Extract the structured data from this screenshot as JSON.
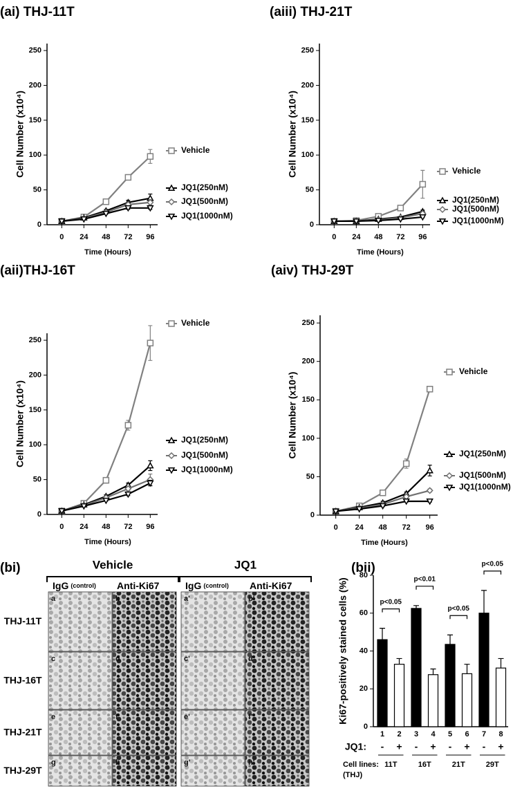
{
  "chart_data": [
    {
      "type": "line",
      "title": "(ai) THJ-11T",
      "x_label": "Time (Hours)",
      "y_label": "Cell Number (x10⁴)",
      "x": [
        0,
        24,
        48,
        72,
        96
      ],
      "xlim": [
        -16,
        104
      ],
      "xticks": [
        0,
        24,
        48,
        72,
        96
      ],
      "ylim": [
        0,
        260
      ],
      "yticks": [
        0,
        50,
        100,
        150,
        200,
        250
      ],
      "series": [
        {
          "name": "Vehicle",
          "color": "#808080",
          "marker": "square",
          "values": [
            5,
            11,
            33,
            68,
            98
          ],
          "errors": [
            1,
            1,
            4,
            3,
            10
          ]
        },
        {
          "name": "JQ1(250nM)",
          "color": "#000000",
          "marker": "triangle",
          "values": [
            5,
            10,
            20,
            32,
            38
          ],
          "errors": [
            1,
            1,
            2,
            3,
            6
          ]
        },
        {
          "name": "JQ1(500nM)",
          "color": "#707070",
          "marker": "diamond",
          "values": [
            5,
            9,
            18,
            29,
            32
          ],
          "errors": [
            1,
            1,
            2,
            2,
            4
          ]
        },
        {
          "name": "JQ1(1000nM)",
          "color": "#000000",
          "marker": "triangle-down",
          "values": [
            5,
            8,
            16,
            24,
            24
          ],
          "errors": [
            1,
            1,
            1,
            2,
            2
          ]
        }
      ]
    },
    {
      "type": "line",
      "title": "(aiii) THJ-21T",
      "x_label": "Time (Hours)",
      "y_label": "Cell Number (x10⁴)",
      "x": [
        0,
        24,
        48,
        72,
        96
      ],
      "xlim": [
        -16,
        104
      ],
      "xticks": [
        0,
        24,
        48,
        72,
        96
      ],
      "ylim": [
        0,
        260
      ],
      "yticks": [
        0,
        50,
        100,
        150,
        200,
        250
      ],
      "series": [
        {
          "name": "Vehicle",
          "color": "#808080",
          "marker": "square",
          "values": [
            5,
            6,
            12,
            24,
            58
          ],
          "errors": [
            1,
            1,
            2,
            3,
            20
          ]
        },
        {
          "name": "JQ1(250nM)",
          "color": "#000000",
          "marker": "triangle",
          "values": [
            5,
            5,
            8,
            11,
            19
          ],
          "errors": [
            1,
            1,
            1,
            1,
            2
          ]
        },
        {
          "name": "JQ1(500nM)",
          "color": "#707070",
          "marker": "diamond",
          "values": [
            5,
            5,
            7,
            10,
            16
          ],
          "errors": [
            1,
            1,
            1,
            1,
            2
          ]
        },
        {
          "name": "JQ1(1000nM)",
          "color": "#000000",
          "marker": "triangle-down",
          "values": [
            5,
            5,
            6,
            8,
            11
          ],
          "errors": [
            1,
            1,
            1,
            1,
            1
          ]
        }
      ]
    },
    {
      "type": "line",
      "title": "(aii)THJ-16T",
      "x_label": "Time (Hours)",
      "y_label": "Cell Number (x10⁴)",
      "x": [
        0,
        24,
        48,
        72,
        96
      ],
      "xlim": [
        -16,
        104
      ],
      "xticks": [
        0,
        24,
        48,
        72,
        96
      ],
      "ylim": [
        0,
        260
      ],
      "yticks": [
        0,
        50,
        100,
        150,
        200,
        250
      ],
      "series": [
        {
          "name": "Vehicle",
          "color": "#808080",
          "marker": "square",
          "values": [
            5,
            16,
            49,
            128,
            246
          ],
          "errors": [
            1,
            2,
            4,
            7,
            25
          ]
        },
        {
          "name": "JQ1(250nM)",
          "color": "#000000",
          "marker": "triangle",
          "values": [
            5,
            14,
            26,
            42,
            70
          ],
          "errors": [
            1,
            1,
            2,
            3,
            7
          ]
        },
        {
          "name": "JQ1(500nM)",
          "color": "#707070",
          "marker": "diamond",
          "values": [
            5,
            13,
            24,
            37,
            50
          ],
          "errors": [
            1,
            1,
            2,
            3,
            8
          ]
        },
        {
          "name": "JQ1(1000nM)",
          "color": "#000000",
          "marker": "triangle-down",
          "values": [
            5,
            12,
            20,
            29,
            45
          ],
          "errors": [
            1,
            1,
            1,
            2,
            4
          ]
        }
      ]
    },
    {
      "type": "line",
      "title": "(aiv) THJ-29T",
      "x_label": "Time (Hours)",
      "y_label": "Cell Number (x10⁴)",
      "x": [
        0,
        24,
        48,
        72,
        96
      ],
      "xlim": [
        -16,
        104
      ],
      "xticks": [
        0,
        24,
        48,
        72,
        96
      ],
      "ylim": [
        0,
        260
      ],
      "yticks": [
        0,
        50,
        100,
        150,
        200,
        250
      ],
      "series": [
        {
          "name": "Vehicle",
          "color": "#808080",
          "marker": "square",
          "values": [
            5,
            12,
            29,
            67,
            164
          ],
          "errors": [
            1,
            1,
            2,
            6,
            3
          ]
        },
        {
          "name": "JQ1(250nM)",
          "color": "#000000",
          "marker": "triangle",
          "values": [
            5,
            10,
            16,
            28,
            58
          ],
          "errors": [
            1,
            1,
            2,
            2,
            7
          ]
        },
        {
          "name": "JQ1(500nM)",
          "color": "#707070",
          "marker": "diamond",
          "values": [
            5,
            9,
            14,
            24,
            32
          ],
          "errors": [
            1,
            1,
            1,
            2,
            2
          ]
        },
        {
          "name": "JQ1(1000nM)",
          "color": "#000000",
          "marker": "triangle-down",
          "values": [
            5,
            8,
            12,
            18,
            18
          ],
          "errors": [
            1,
            1,
            1,
            1,
            1
          ]
        }
      ]
    },
    {
      "type": "bar",
      "title": "(bii)",
      "y_label": "Ki67-positively stained cells (%)",
      "categories": [
        "1",
        "2",
        "3",
        "4",
        "5",
        "6",
        "7",
        "8"
      ],
      "values": [
        46,
        33,
        62.5,
        27.5,
        43.5,
        28,
        60,
        31
      ],
      "errors": [
        6,
        3,
        1.5,
        3,
        5,
        5,
        12,
        5
      ],
      "colors": [
        "#000000",
        "#ffffff",
        "#000000",
        "#ffffff",
        "#000000",
        "#ffffff",
        "#000000",
        "#ffffff"
      ],
      "ylim": [
        0,
        80
      ],
      "yticks": [
        0,
        20,
        40,
        60,
        80
      ],
      "annotations": [
        "p<0.05",
        "p<0.01",
        "p<0.05",
        "p<0.05"
      ],
      "jq1_label": "JQ1:",
      "jq1_signs": [
        "-",
        "+",
        "-",
        "+",
        "-",
        "+",
        "-",
        "+"
      ],
      "cell_lines_label": "Cell lines:",
      "cell_lines_note": "(THJ)",
      "cell_lines": [
        "11T",
        "16T",
        "21T",
        "29T"
      ]
    }
  ],
  "image_panel": {
    "title": "(bi)",
    "columns": [
      {
        "label": "IgG",
        "note": "(control)"
      },
      {
        "label": "Anti-Ki67"
      }
    ],
    "rows": [
      "THJ-11T",
      "THJ-16T",
      "THJ-21T",
      "THJ-29T"
    ],
    "groups": [
      {
        "name": "Vehicle",
        "letters": [
          [
            "a",
            "b"
          ],
          [
            "c",
            "d"
          ],
          [
            "e",
            "f"
          ],
          [
            "g",
            "h"
          ]
        ]
      },
      {
        "name": "JQ1",
        "letters": [
          [
            "a'",
            "b'"
          ],
          [
            "c'",
            "d'"
          ],
          [
            "e'",
            "f'"
          ],
          [
            "g'",
            "h'"
          ]
        ]
      }
    ]
  }
}
